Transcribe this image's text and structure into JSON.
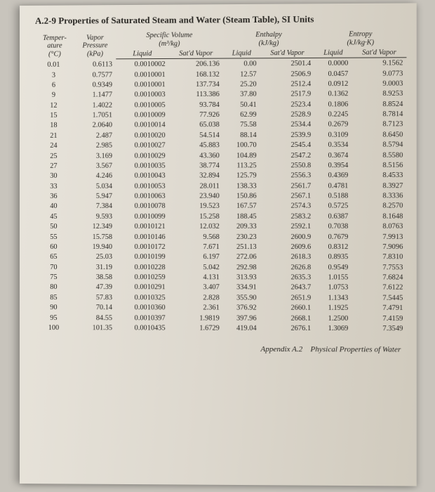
{
  "title": "A.2-9   Properties of Saturated Steam and Water (Steam Table), SI Units",
  "footer_appendix": "Appendix A.2",
  "footer_caption": "Physical Properties of Water",
  "groupHeaders": {
    "temp": "Temper-\nature\n(°C)",
    "press": "Vapor\nPressure\n(kPa)",
    "specVol": "Specific Volume\n(m³/kg)",
    "enthalpy": "Enthalpy\n(kJ/kg)",
    "entropy": "Entropy\n(kJ/kg·K)"
  },
  "subHeaders": [
    "Liquid",
    "Sat'd Vapor",
    "Liquid",
    "Sat'd Vapor",
    "Liquid",
    "Sat'd Vapor"
  ],
  "rows": [
    [
      "0.01",
      "0.6113",
      "0.0010002",
      "206.136",
      "0.00",
      "2501.4",
      "0.0000",
      "9.1562"
    ],
    [
      "3",
      "0.7577",
      "0.0010001",
      "168.132",
      "12.57",
      "2506.9",
      "0.0457",
      "9.0773"
    ],
    [
      "6",
      "0.9349",
      "0.0010001",
      "137.734",
      "25.20",
      "2512.4",
      "0.0912",
      "9.0003"
    ],
    [
      "9",
      "1.1477",
      "0.0010003",
      "113.386",
      "37.80",
      "2517.9",
      "0.1362",
      "8.9253"
    ],
    [
      "12",
      "1.4022",
      "0.0010005",
      "93.784",
      "50.41",
      "2523.4",
      "0.1806",
      "8.8524"
    ],
    [
      "15",
      "1.7051",
      "0.0010009",
      "77.926",
      "62.99",
      "2528.9",
      "0.2245",
      "8.7814"
    ],
    [
      "18",
      "2.0640",
      "0.0010014",
      "65.038",
      "75.58",
      "2534.4",
      "0.2679",
      "8.7123"
    ],
    [
      "21",
      "2.487",
      "0.0010020",
      "54.514",
      "88.14",
      "2539.9",
      "0.3109",
      "8.6450"
    ],
    [
      "24",
      "2.985",
      "0.0010027",
      "45.883",
      "100.70",
      "2545.4",
      "0.3534",
      "8.5794"
    ],
    [
      "25",
      "3.169",
      "0.0010029",
      "43.360",
      "104.89",
      "2547.2",
      "0.3674",
      "8.5580"
    ],
    [
      "27",
      "3.567",
      "0.0010035",
      "38.774",
      "113.25",
      "2550.8",
      "0.3954",
      "8.5156"
    ],
    [
      "30",
      "4.246",
      "0.0010043",
      "32.894",
      "125.79",
      "2556.3",
      "0.4369",
      "8.4533"
    ],
    [
      "33",
      "5.034",
      "0.0010053",
      "28.011",
      "138.33",
      "2561.7",
      "0.4781",
      "8.3927"
    ],
    [
      "36",
      "5.947",
      "0.0010063",
      "23.940",
      "150.86",
      "2567.1",
      "0.5188",
      "8.3336"
    ],
    [
      "40",
      "7.384",
      "0.0010078",
      "19.523",
      "167.57",
      "2574.3",
      "0.5725",
      "8.2570"
    ],
    [
      "45",
      "9.593",
      "0.0010099",
      "15.258",
      "188.45",
      "2583.2",
      "0.6387",
      "8.1648"
    ],
    [
      "50",
      "12.349",
      "0.0010121",
      "12.032",
      "209.33",
      "2592.1",
      "0.7038",
      "8.0763"
    ],
    [
      "55",
      "15.758",
      "0.0010146",
      "9.568",
      "230.23",
      "2600.9",
      "0.7679",
      "7.9913"
    ],
    [
      "60",
      "19.940",
      "0.0010172",
      "7.671",
      "251.13",
      "2609.6",
      "0.8312",
      "7.9096"
    ],
    [
      "65",
      "25.03",
      "0.0010199",
      "6.197",
      "272.06",
      "2618.3",
      "0.8935",
      "7.8310"
    ],
    [
      "70",
      "31.19",
      "0.0010228",
      "5.042",
      "292.98",
      "2626.8",
      "0.9549",
      "7.7553"
    ],
    [
      "75",
      "38.58",
      "0.0010259",
      "4.131",
      "313.93",
      "2635.3",
      "1.0155",
      "7.6824"
    ],
    [
      "80",
      "47.39",
      "0.0010291",
      "3.407",
      "334.91",
      "2643.7",
      "1.0753",
      "7.6122"
    ],
    [
      "85",
      "57.83",
      "0.0010325",
      "2.828",
      "355.90",
      "2651.9",
      "1.1343",
      "7.5445"
    ],
    [
      "90",
      "70.14",
      "0.0010360",
      "2.361",
      "376.92",
      "2660.1",
      "1.1925",
      "7.4791"
    ],
    [
      "95",
      "84.55",
      "0.0010397",
      "1.9819",
      "397.96",
      "2668.1",
      "1.2500",
      "7.4159"
    ],
    [
      "100",
      "101.35",
      "0.0010435",
      "1.6729",
      "419.04",
      "2676.1",
      "1.3069",
      "7.3549"
    ]
  ]
}
